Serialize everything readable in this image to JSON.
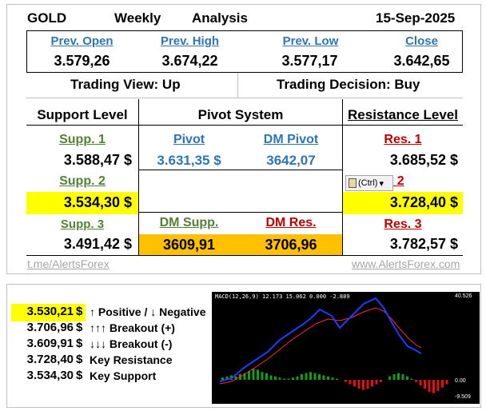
{
  "header": {
    "symbol": "GOLD",
    "period": "Weekly",
    "analysis": "Analysis",
    "date": "15-Sep-2025"
  },
  "prev": {
    "open_label": "Prev. Open",
    "high_label": "Prev. High",
    "low_label": "Prev. Low",
    "close_label": "Close",
    "open": "3.579,26",
    "high": "3.674,22",
    "low": "3.577,17",
    "close": "3.642,65"
  },
  "trading": {
    "view": "Trading View:  Up",
    "decision": "Trading Decision:  Buy"
  },
  "sections": {
    "support": "Support Level",
    "pivot": "Pivot System",
    "resistance": "Resistance Level"
  },
  "levels": {
    "supp1_label": "Supp. 1",
    "supp1": "3.588,47 $",
    "supp2_label": "Supp. 2",
    "supp2": "3.534,30 $",
    "supp3_label": "Supp. 3",
    "supp3": "3.491,42 $",
    "pivot_label": "Pivot",
    "pivot": "3.631,35 $",
    "dm_pivot_label": "DM Pivot",
    "dm_pivot": "3642,07",
    "dm_supp_label": "DM Supp.",
    "dm_supp": "3609,91",
    "dm_res_label": "DM Res.",
    "dm_res": "3706,96",
    "res1_label": "Res. 1",
    "res1": "3.685,52 $",
    "res2_label": "es. 2",
    "res2": "3.728,40 $",
    "res3_label": "Res. 3",
    "res3": "3.782,57 $"
  },
  "ctrl_popup": "(Ctrl)",
  "watermarks": {
    "left": "t.me/AlertsForex",
    "right": "www.AlertsForex.com"
  },
  "summary": [
    {
      "value": "3.530,21",
      "currency": "$",
      "label": "↑ Positive / ↓ Negative"
    },
    {
      "value": "3.706,96",
      "currency": "$",
      "label": "↑↑↑ Breakout (+)"
    },
    {
      "value": "3.609,91",
      "currency": "$",
      "label": "↓↓↓ Breakout (-)"
    },
    {
      "value": "3.728,40",
      "currency": "$",
      "label": "Key Resistance"
    },
    {
      "value": "3.534,30",
      "currency": "$",
      "label": "Key Support"
    }
  ],
  "macd": {
    "caption": "MACD(12,26,9) 12.173 15.062 0.000 -2.889",
    "axis_top": "40.526",
    "axis_mid": "0.00",
    "axis_bottom": "-9.509",
    "colors": {
      "macd": "#1e3cff",
      "signal": "#ff2a2a",
      "hist_pos": "#10a010",
      "hist_neg": "#e01010",
      "bg": "#000000"
    }
  }
}
